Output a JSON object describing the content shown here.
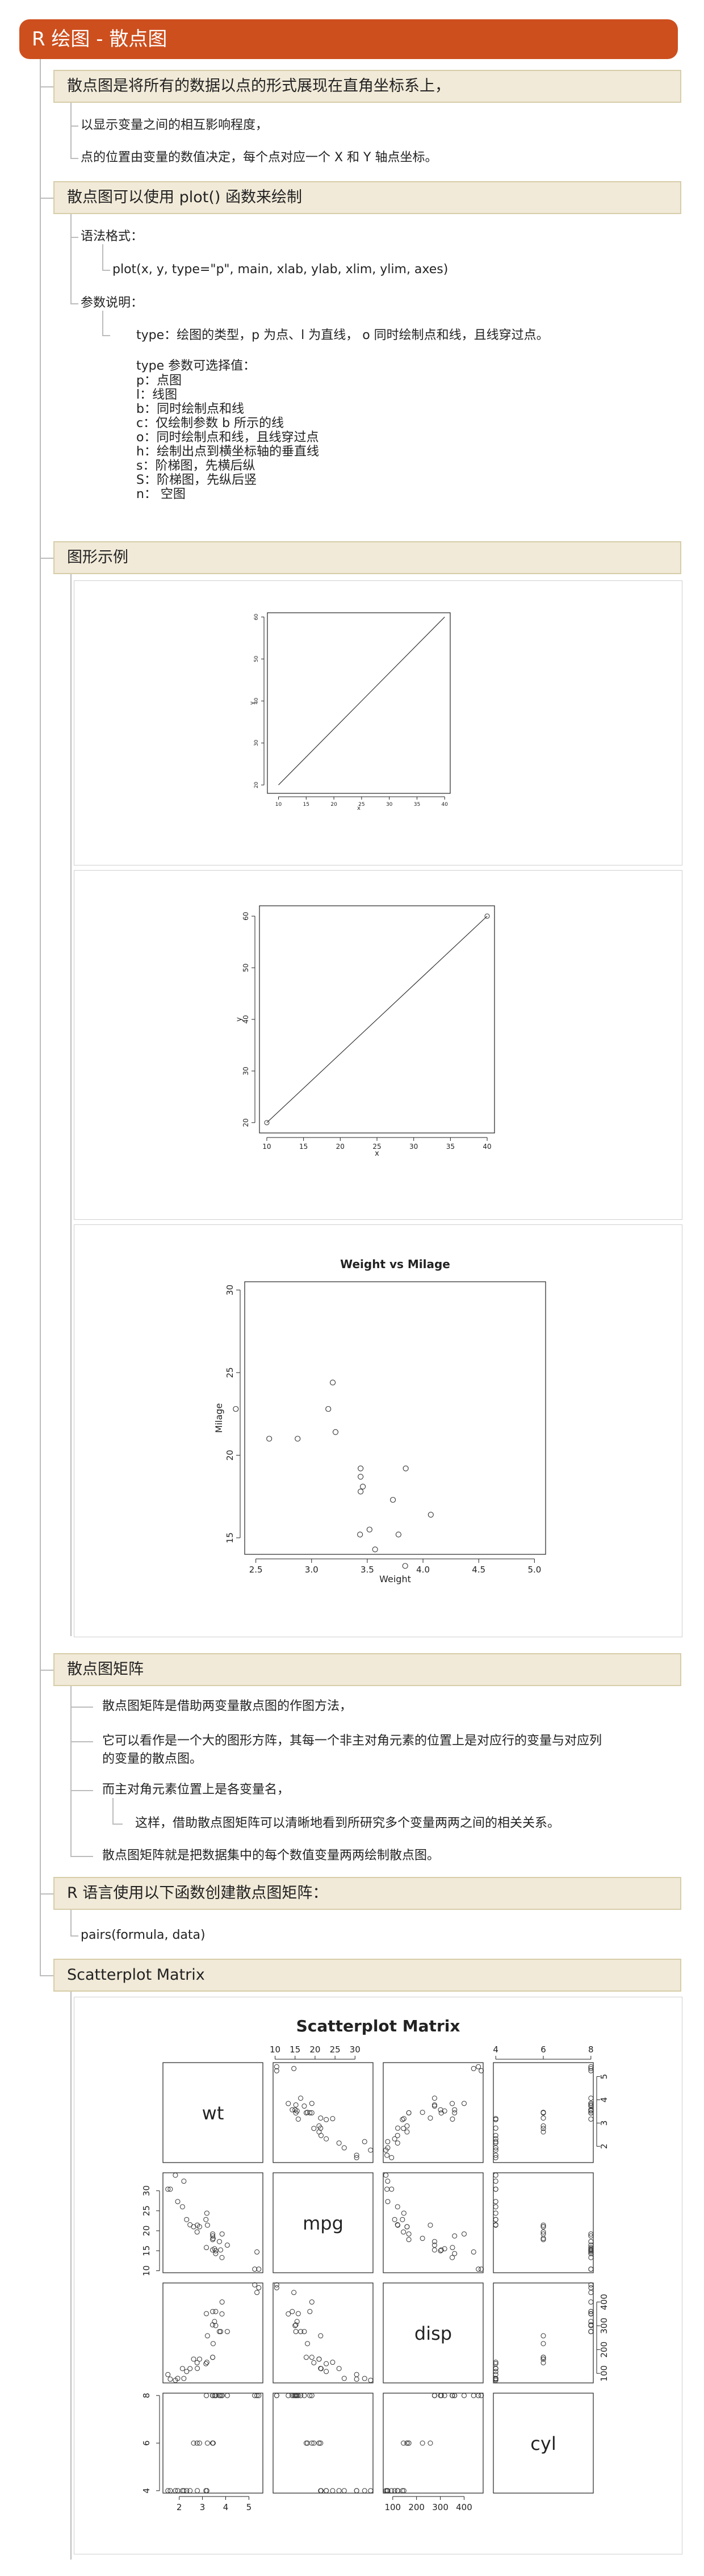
{
  "title": "R 绘图 - 散点图",
  "sections": {
    "s1": {
      "heading": "散点图是将所有的数据以点的形式展现在直角坐标系上，",
      "items": [
        "以显示变量之间的相互影响程度，",
        "点的位置由变量的数值决定，每个点对应一个 X 和 Y 轴点坐标。"
      ]
    },
    "s2": {
      "heading": "散点图可以使用 plot() 函数来绘制",
      "syntax_label": "语法格式：",
      "syntax_code": "plot(x, y, type=\"p\", main, xlab, ylab, xlim, ylim, axes)",
      "params_label": "参数说明：",
      "type_desc": "type：绘图的类型，p 为点、l 为直线， o 同时绘制点和线，且线穿过点。",
      "type_options_title": "type 参数可选择值：",
      "type_options": [
        "p：点图",
        "l：线图",
        "b：同时绘制点和线",
        "c：仅绘制参数 b 所示的线",
        "o：同时绘制点和线，且线穿过点",
        "h：绘制出点到横坐标轴的垂直线",
        "s：阶梯图，先横后纵",
        "S：阶梯图，先纵后竖",
        "n： 空图"
      ]
    },
    "s3": {
      "heading": "图形示例"
    },
    "s4": {
      "heading": "散点图矩阵",
      "items": [
        "散点图矩阵是借助两变量散点图的作图方法，",
        "它可以看作是一个大的图形方阵，其每一个非主对角元素的位置上是对应行的变量与对应列",
        "的变量的散点图。",
        "而主对角元素位置上是各变量名，",
        "这样，借助散点图矩阵可以清晰地看到所研究多个变量两两之间的相关关系。",
        "散点图矩阵就是把数据集中的每个数值变量两两绘制散点图。"
      ]
    },
    "s5": {
      "heading": "R 语言使用以下函数创建散点图矩阵：",
      "code": "pairs(formula, data)"
    },
    "s6": {
      "heading": "Scatterplot Matrix"
    }
  },
  "chart_data": [
    {
      "type": "line",
      "x": [
        10,
        40
      ],
      "y": [
        20,
        60
      ],
      "xlabel": "x",
      "ylabel": "y",
      "xlim": [
        8,
        41
      ],
      "ylim": [
        18,
        61
      ],
      "xticks": [
        10,
        15,
        20,
        25,
        30,
        35,
        40
      ],
      "yticks": [
        20,
        30,
        40,
        50,
        60
      ]
    },
    {
      "type": "line",
      "x": [
        10,
        40
      ],
      "y": [
        20,
        60
      ],
      "points_at_ends": true,
      "xlabel": "x",
      "ylabel": "y",
      "xlim": [
        9,
        41
      ],
      "ylim": [
        18,
        62
      ],
      "xticks": [
        10,
        15,
        20,
        25,
        30,
        35,
        40
      ],
      "xtick_labels": [
        "10",
        "15",
        "20",
        "25",
        "30",
        "35",
        "40"
      ],
      "yticks": [
        20,
        30,
        40,
        50,
        60
      ]
    },
    {
      "type": "scatter",
      "title": "Weight vs Milage",
      "xlabel": "Weight",
      "ylabel": "Milage",
      "xlim": [
        2.4,
        5.1
      ],
      "ylim": [
        14,
        30.5
      ],
      "xticks": [
        2.5,
        3.0,
        3.5,
        4.0,
        4.5,
        5.0
      ],
      "xtick_labels": [
        "2.5",
        "3.0",
        "3.5",
        "4.0",
        "4.5",
        "5.0"
      ],
      "yticks": [
        15,
        20,
        25,
        30
      ],
      "x": [
        2.62,
        2.875,
        2.32,
        3.215,
        3.44,
        3.46,
        3.57,
        3.19,
        3.15,
        3.44,
        3.44,
        4.07,
        3.73,
        3.78,
        3.52,
        3.435,
        3.84,
        3.845
      ],
      "y": [
        21.0,
        21.0,
        22.8,
        21.4,
        18.7,
        18.1,
        14.3,
        24.4,
        22.8,
        19.2,
        17.8,
        16.4,
        17.3,
        15.2,
        15.5,
        15.2,
        13.3,
        19.2
      ]
    },
    {
      "type": "scatter-matrix",
      "title": "Scatterplot Matrix",
      "variables": [
        "wt",
        "mpg",
        "disp",
        "cyl"
      ],
      "axis_ticks": {
        "wt": [
          2,
          3,
          4,
          5
        ],
        "mpg": [
          10,
          15,
          20,
          25,
          30
        ],
        "disp": [
          100,
          200,
          300,
          400
        ],
        "cyl": [
          4,
          6,
          8
        ]
      },
      "lims": {
        "wt": [
          1.3,
          5.6
        ],
        "mpg": [
          9.5,
          34.5
        ],
        "disp": [
          60,
          480
        ],
        "cyl": [
          3.9,
          8.1
        ]
      },
      "data": {
        "wt": [
          2.62,
          2.875,
          2.32,
          3.215,
          3.44,
          3.46,
          3.57,
          3.19,
          3.15,
          3.44,
          3.44,
          4.07,
          3.73,
          3.78,
          5.25,
          5.424,
          5.345,
          2.2,
          1.615,
          1.835,
          2.465,
          3.52,
          3.435,
          3.84,
          3.845,
          1.935,
          2.14,
          1.513,
          3.17,
          2.77,
          3.57,
          2.78
        ],
        "mpg": [
          21,
          21,
          22.8,
          21.4,
          18.7,
          18.1,
          14.3,
          24.4,
          22.8,
          19.2,
          17.8,
          16.4,
          17.3,
          15.2,
          10.4,
          10.4,
          14.7,
          32.4,
          30.4,
          33.9,
          21.5,
          15.5,
          15.2,
          13.3,
          19.2,
          27.3,
          26,
          30.4,
          15.8,
          19.7,
          15,
          21.4
        ],
        "disp": [
          160,
          160,
          108,
          258,
          360,
          225,
          360,
          146.7,
          140.8,
          167.6,
          167.6,
          275.8,
          275.8,
          275.8,
          472,
          460,
          440,
          78.7,
          75.7,
          71.1,
          120.1,
          318,
          304,
          350,
          400,
          79,
          120.3,
          95.1,
          351,
          145,
          301,
          121
        ],
        "cyl": [
          6,
          6,
          4,
          6,
          8,
          6,
          8,
          4,
          4,
          6,
          6,
          8,
          8,
          8,
          8,
          8,
          8,
          4,
          4,
          4,
          4,
          8,
          8,
          8,
          8,
          4,
          4,
          4,
          8,
          6,
          8,
          4
        ]
      }
    }
  ]
}
